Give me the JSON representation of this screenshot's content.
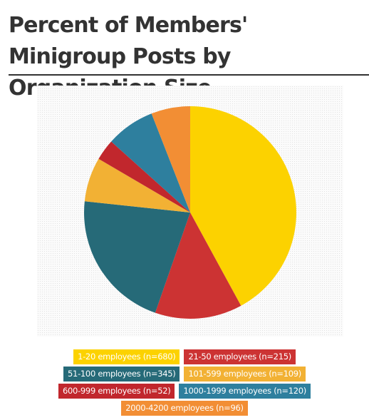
{
  "title": "Percent of Members' Minigroup Posts by Organization Size",
  "chart_data": {
    "type": "pie",
    "title": "Percent of Members' Minigroup Posts by Organization Size",
    "slices": [
      {
        "label": "1-20 employees (n=680)",
        "value": 680,
        "color": "#FCD200"
      },
      {
        "label": "21-50 employees (n=215)",
        "value": 215,
        "color": "#CC3333"
      },
      {
        "label": "51-100 employees (n=345)",
        "value": 345,
        "color": "#266A78"
      },
      {
        "label": "101-599 employees (n=109)",
        "value": 109,
        "color": "#F2B134"
      },
      {
        "label": "600-999 employees (n=52)",
        "value": 52,
        "color": "#C1272D"
      },
      {
        "label": "1000-1999 employees (n=120)",
        "value": 120,
        "color": "#2E7F9E"
      },
      {
        "label": "2000-4200 employees (n=96)",
        "value": 96,
        "color": "#F28E34"
      }
    ],
    "legend": {
      "rows": [
        [
          0,
          1
        ],
        [
          2,
          3
        ],
        [
          4,
          5
        ],
        [
          6
        ]
      ],
      "placement": "bottom"
    }
  }
}
